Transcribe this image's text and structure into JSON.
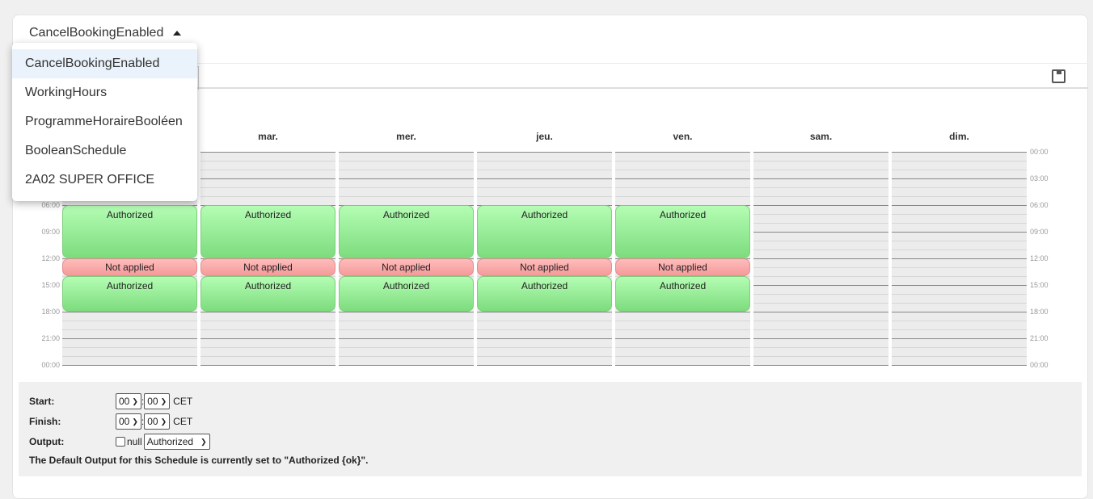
{
  "schedule_selector": {
    "selected": "CancelBookingEnabled",
    "options": [
      "CancelBookingEnabled",
      "WorkingHours",
      "ProgrammeHoraireBooléen",
      "BooleanSchedule",
      "2A02 SUPER OFFICE"
    ]
  },
  "toolbar": {
    "save_icon": "floppy-disk-icon"
  },
  "days": [
    "",
    "mar.",
    "mer.",
    "jeu.",
    "ven.",
    "sam.",
    "dim."
  ],
  "time_labels": [
    "00:00",
    "03:00",
    "06:00",
    "09:00",
    "12:00",
    "15:00",
    "18:00",
    "21:00",
    "00:00"
  ],
  "colors": {
    "authorized": "#9eee9e",
    "not_applied": "#fbabab"
  },
  "periods": [
    {
      "days": [
        0,
        1,
        2,
        3,
        4
      ],
      "start": "06:00",
      "end": "12:00",
      "label": "Authorized",
      "type": "ok"
    },
    {
      "days": [
        0,
        1,
        2,
        3,
        4
      ],
      "start": "12:00",
      "end": "14:00",
      "label": "Not applied",
      "type": "na"
    },
    {
      "days": [
        0,
        1,
        2,
        3,
        4
      ],
      "start": "14:00",
      "end": "18:00",
      "label": "Authorized",
      "type": "ok"
    }
  ],
  "form": {
    "start_label": "Start:",
    "start_hour": "00",
    "start_min": "00",
    "start_tz": "CET",
    "finish_label": "Finish:",
    "finish_hour": "00",
    "finish_min": "00",
    "finish_tz": "CET",
    "output_label": "Output:",
    "null_label": "null",
    "output_value": "Authorized",
    "default_note": "The Default Output for this Schedule is currently set to \"Authorized {ok}\"."
  }
}
